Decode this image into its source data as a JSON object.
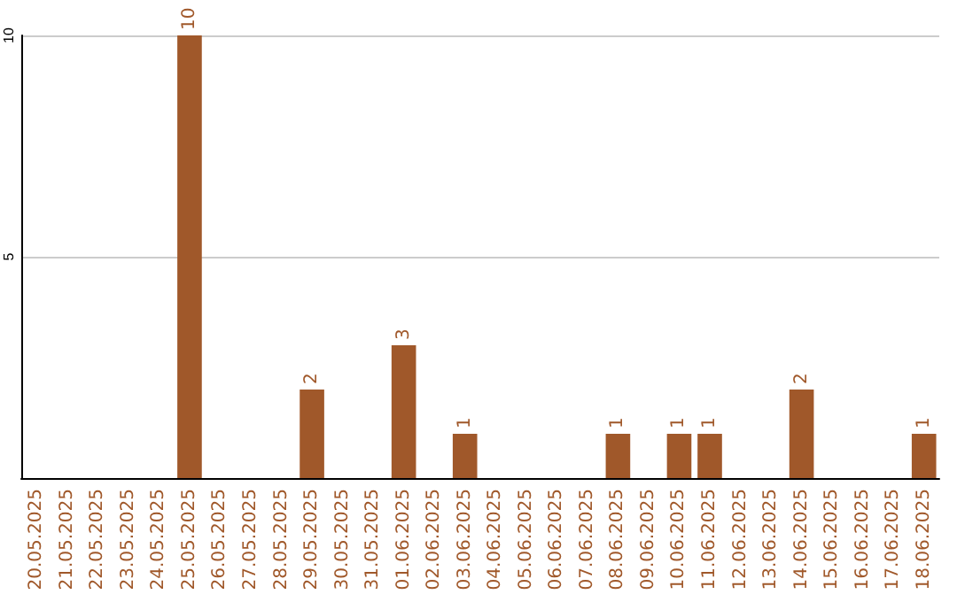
{
  "chart_data": {
    "type": "bar",
    "categories": [
      "20.05.2025",
      "21.05.2025",
      "22.05.2025",
      "23.05.2025",
      "24.05.2025",
      "25.05.2025",
      "26.05.2025",
      "27.05.2025",
      "28.05.2025",
      "29.05.2025",
      "30.05.2025",
      "31.05.2025",
      "01.06.2025",
      "02.06.2025",
      "03.06.2025",
      "04.06.2025",
      "05.06.2025",
      "06.06.2025",
      "07.06.2025",
      "08.06.2025",
      "09.06.2025",
      "10.06.2025",
      "11.06.2025",
      "12.06.2025",
      "13.06.2025",
      "14.06.2025",
      "15.06.2025",
      "16.06.2025",
      "17.06.2025",
      "18.06.2025"
    ],
    "values": [
      0,
      0,
      0,
      0,
      0,
      10,
      0,
      0,
      0,
      2,
      0,
      0,
      3,
      0,
      1,
      0,
      0,
      0,
      0,
      1,
      0,
      1,
      1,
      0,
      0,
      2,
      0,
      0,
      0,
      1
    ],
    "value_labels": [
      null,
      null,
      null,
      null,
      null,
      "10",
      null,
      null,
      null,
      "2",
      null,
      null,
      "3",
      null,
      "1",
      null,
      null,
      null,
      null,
      "1",
      null,
      "1",
      "1",
      null,
      null,
      "2",
      null,
      null,
      null,
      "1"
    ],
    "color": "#a0582a",
    "ylim": [
      0,
      10
    ],
    "yticks": [
      {
        "value": 0,
        "label": null
      },
      5,
      10
    ],
    "grid": "y"
  }
}
